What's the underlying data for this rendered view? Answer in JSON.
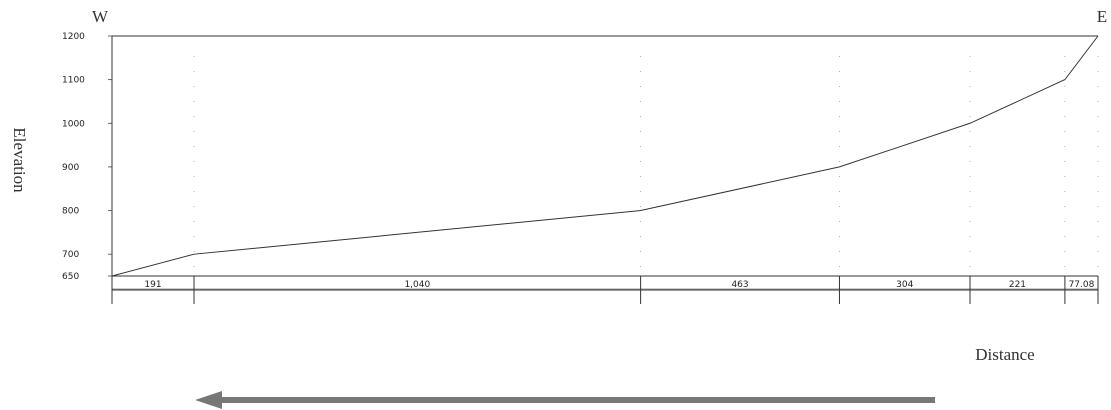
{
  "chart_data": {
    "type": "line",
    "left_label": "W",
    "right_label": "E",
    "y_label": "Elevation",
    "x_label": "Distance",
    "series": [
      {
        "name": "Elevation",
        "color": "#333333",
        "values": [
          650,
          700,
          800,
          900,
          1000,
          1100,
          1200
        ]
      }
    ],
    "segments": {
      "values": [
        191,
        1040,
        463,
        304,
        221,
        77.08
      ],
      "value_labels": [
        "191",
        "1,040",
        "463",
        "304",
        "221",
        "77.08"
      ]
    },
    "ylim": [
      650,
      1200
    ],
    "yticks": [
      650,
      700,
      800,
      900,
      1000,
      1100,
      1200
    ]
  }
}
